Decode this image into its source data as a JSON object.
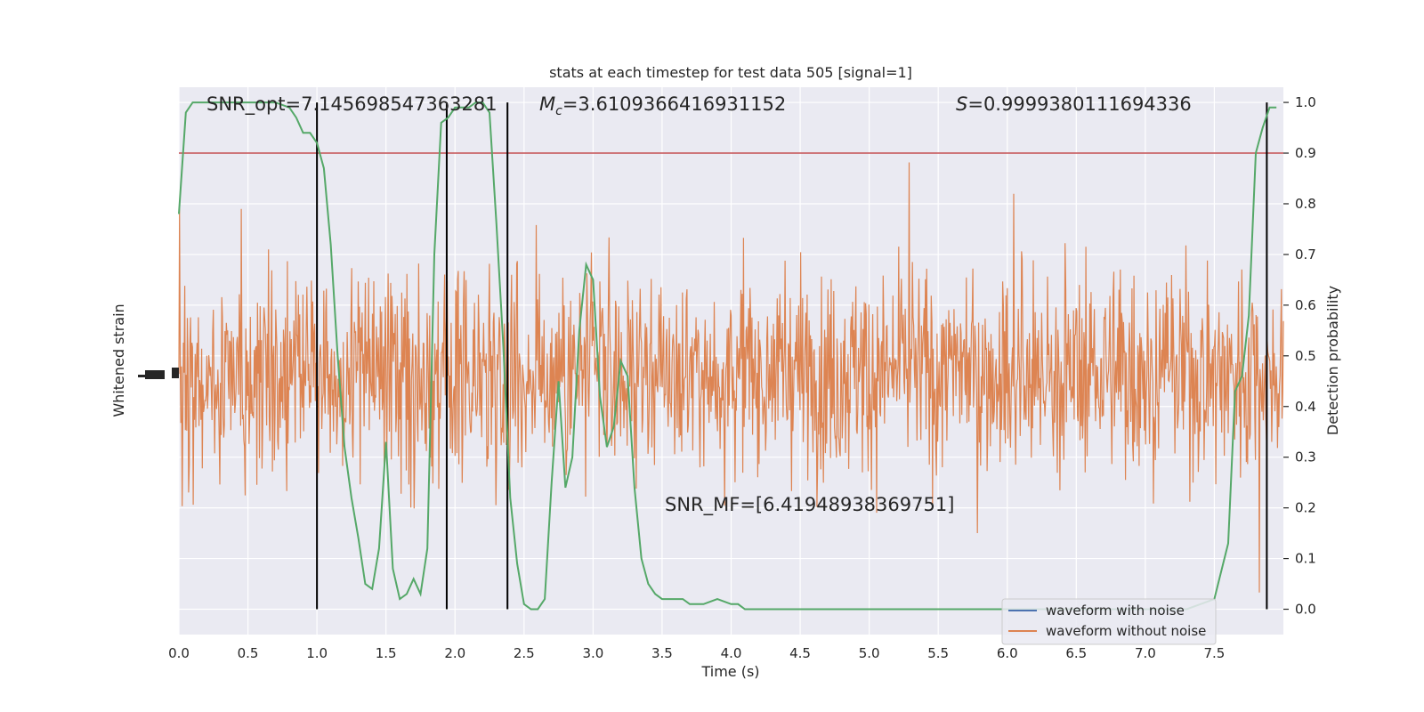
{
  "chart_data": {
    "type": "line",
    "title": "stats at each timestep for test data 505 [signal=1]",
    "xlabel": "Time (s)",
    "ylabel_left": "Whitened strain",
    "ylabel_right": "Detection probability",
    "xlim": [
      0,
      8.0
    ],
    "right_ylim": [
      -0.05,
      1.03
    ],
    "x_ticks": [
      "0.0",
      "0.5",
      "1.0",
      "1.5",
      "2.0",
      "2.5",
      "3.0",
      "3.5",
      "4.0",
      "4.5",
      "5.0",
      "5.5",
      "6.0",
      "6.5",
      "7.0",
      "7.5"
    ],
    "right_ticks": [
      "0.0",
      "0.1",
      "0.2",
      "0.3",
      "0.4",
      "0.5",
      "0.6",
      "0.7",
      "0.8",
      "0.9",
      "1.0"
    ],
    "grid": true,
    "threshold": 0.9,
    "vlines": [
      1.0,
      1.94,
      2.38,
      7.88
    ],
    "annotations": {
      "snr_opt": "SNR_opt=7.145698547363281",
      "mc": "=3.6109366416931152",
      "mc_symbol": "M",
      "mc_sub": "c",
      "s_val": "=0.9999380111694336",
      "s_symbol": "S",
      "snr_mf": "SNR_MF=[6.41948938369751]"
    },
    "legend": {
      "position": "lower-right",
      "entries": [
        {
          "label": "waveform with noise",
          "color": "#4c72b0"
        },
        {
          "label": "waveform without noise",
          "color": "#dd8452"
        }
      ]
    },
    "series": [
      {
        "name": "",
        "color": "#55a868",
        "x": [
          0.0,
          0.05,
          0.1,
          0.15,
          0.2,
          0.3,
          0.4,
          0.5,
          0.6,
          0.7,
          0.8,
          0.85,
          0.9,
          0.95,
          1.0,
          1.05,
          1.1,
          1.15,
          1.2,
          1.25,
          1.3,
          1.35,
          1.4,
          1.45,
          1.5,
          1.55,
          1.6,
          1.65,
          1.7,
          1.75,
          1.8,
          1.85,
          1.9,
          1.95,
          2.0,
          2.05,
          2.1,
          2.15,
          2.2,
          2.25,
          2.3,
          2.35,
          2.4,
          2.45,
          2.5,
          2.55,
          2.6,
          2.65,
          2.7,
          2.75,
          2.8,
          2.85,
          2.9,
          2.95,
          3.0,
          3.05,
          3.1,
          3.15,
          3.2,
          3.25,
          3.3,
          3.35,
          3.4,
          3.45,
          3.5,
          3.55,
          3.6,
          3.65,
          3.7,
          3.75,
          3.8,
          3.9,
          4.0,
          4.05,
          4.1,
          4.2,
          4.3,
          4.4,
          4.5,
          4.7,
          4.9,
          5.1,
          5.3,
          5.5,
          5.7,
          5.9,
          6.1,
          6.3,
          6.5,
          6.7,
          6.9,
          7.1,
          7.3,
          7.4,
          7.5,
          7.6,
          7.65,
          7.7,
          7.75,
          7.8,
          7.85,
          7.9,
          7.95
        ],
        "values": [
          0.78,
          0.98,
          1.0,
          1.0,
          1.0,
          1.0,
          1.0,
          1.0,
          1.0,
          1.0,
          0.99,
          0.97,
          0.94,
          0.94,
          0.92,
          0.87,
          0.72,
          0.5,
          0.32,
          0.22,
          0.14,
          0.05,
          0.04,
          0.12,
          0.33,
          0.08,
          0.02,
          0.03,
          0.06,
          0.03,
          0.12,
          0.7,
          0.96,
          0.97,
          0.99,
          0.99,
          0.99,
          1.0,
          1.0,
          0.98,
          0.76,
          0.52,
          0.22,
          0.09,
          0.01,
          0.0,
          0.0,
          0.02,
          0.25,
          0.45,
          0.24,
          0.3,
          0.55,
          0.68,
          0.65,
          0.42,
          0.32,
          0.36,
          0.49,
          0.46,
          0.24,
          0.1,
          0.05,
          0.03,
          0.02,
          0.02,
          0.02,
          0.02,
          0.01,
          0.01,
          0.01,
          0.02,
          0.01,
          0.01,
          0.0,
          0.0,
          0.0,
          0.0,
          0.0,
          0.0,
          0.0,
          0.0,
          0.0,
          0.0,
          0.0,
          0.0,
          0.0,
          0.0,
          0.0,
          0.0,
          0.0,
          0.0,
          0.0,
          0.01,
          0.02,
          0.13,
          0.43,
          0.46,
          0.58,
          0.9,
          0.95,
          0.99,
          0.99
        ]
      }
    ]
  }
}
